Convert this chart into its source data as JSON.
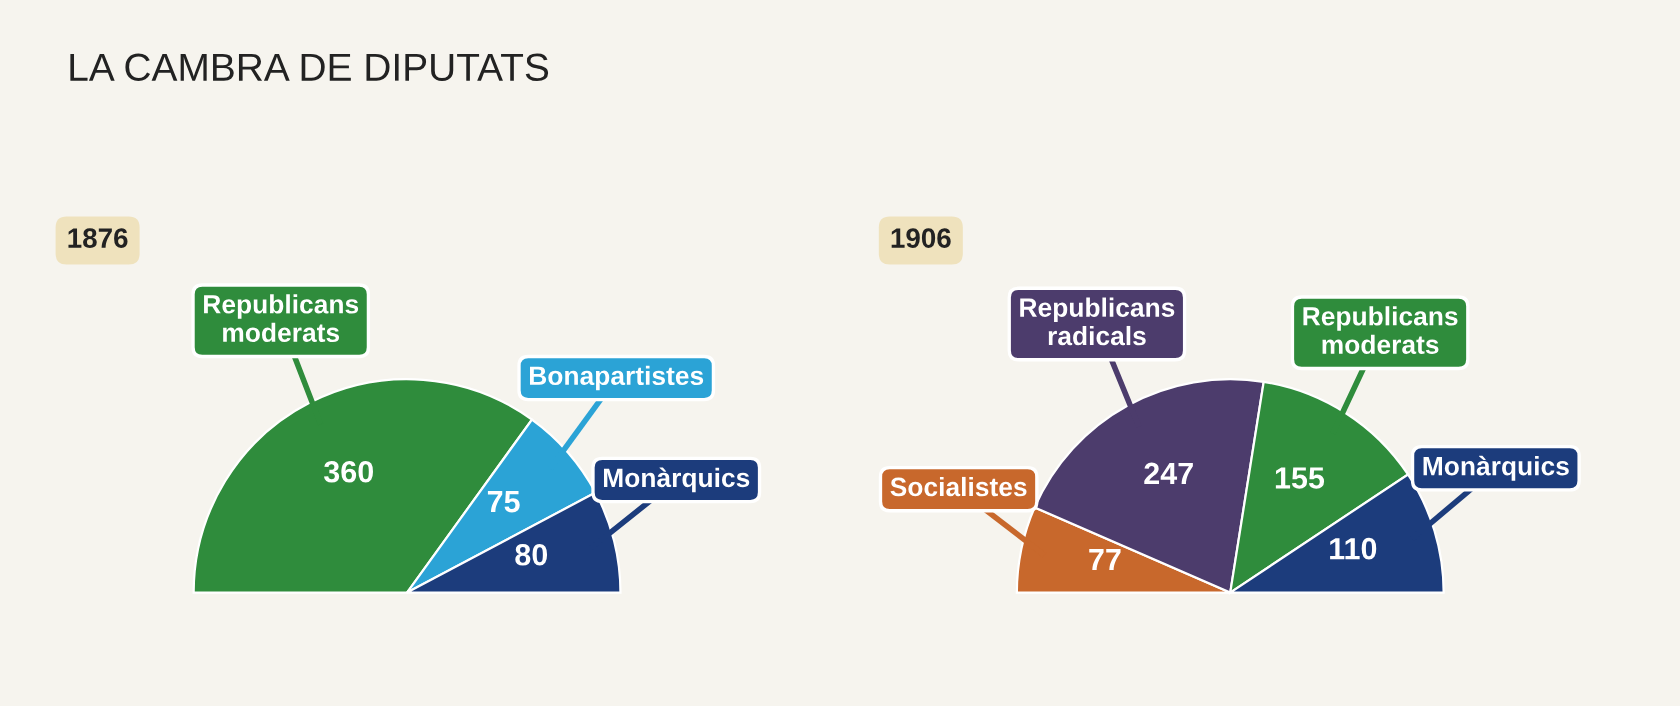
{
  "chart_data": [
    {
      "type": "pie",
      "title": "LA CAMBRA DE DIPUTATS",
      "subtitle": "1876",
      "categories": [
        "Republicans moderats",
        "Bonapartistes",
        "Monàrquics"
      ],
      "values": [
        360,
        75,
        80
      ],
      "colors": [
        "#2f8c3c",
        "#2ba3d6",
        "#1c3c7c"
      ],
      "data_labels": true
    },
    {
      "type": "pie",
      "subtitle": "1906",
      "categories": [
        "Socialistes",
        "Republicans radicals",
        "Republicans moderats",
        "Monàrquics"
      ],
      "values": [
        77,
        247,
        155,
        110
      ],
      "colors": [
        "#c8682c",
        "#4c3c6c",
        "#2f8c3c",
        "#1c3c7c"
      ],
      "data_labels": true
    }
  ]
}
